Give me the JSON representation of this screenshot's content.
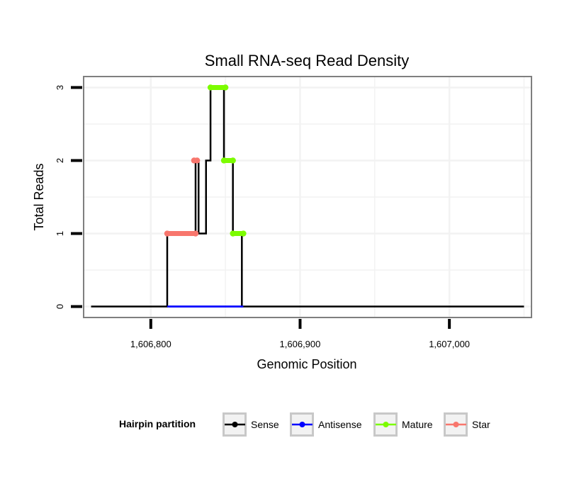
{
  "chart_data": {
    "type": "line",
    "title": "Small RNA-seq Read Density",
    "xlabel": "Genomic Position",
    "ylabel": "Total Reads",
    "xlim": [
      1606755,
      1607055
    ],
    "ylim": [
      -0.15,
      3.15
    ],
    "x_ticks": [
      1606800,
      1606900,
      1607000
    ],
    "x_tick_labels": [
      "1,606,800",
      "1,606,900",
      "1,607,000"
    ],
    "y_ticks": [
      0,
      1,
      2,
      3
    ],
    "y_tick_labels": [
      "0",
      "1",
      "2",
      "3"
    ],
    "grid": true,
    "legend": {
      "title": "Hairpin partition",
      "position": "bottom",
      "entries": [
        {
          "name": "Sense",
          "color": "#000000"
        },
        {
          "name": "Antisense",
          "color": "#0000ff"
        },
        {
          "name": "Mature",
          "color": "#7cfc00"
        },
        {
          "name": "Star",
          "color": "#f8766d"
        }
      ]
    },
    "series": [
      {
        "name": "Sense",
        "color": "#000000",
        "x": [
          1606760,
          1606811,
          1606811,
          1606830,
          1606830,
          1606832,
          1606832,
          1606837,
          1606837,
          1606840,
          1606840,
          1606849,
          1606849,
          1606855,
          1606855,
          1606861,
          1606861,
          1607050
        ],
        "y": [
          0,
          0,
          1,
          1,
          2,
          2,
          1,
          1,
          2,
          2,
          3,
          3,
          2,
          2,
          1,
          1,
          0,
          0
        ]
      },
      {
        "name": "Antisense",
        "color": "#0000ff",
        "x": [
          1606811,
          1606862
        ],
        "y": [
          0,
          0
        ]
      }
    ],
    "segments": [
      {
        "name": "Star",
        "color": "#f8766d",
        "x": [
          1606811,
          1606830
        ],
        "y": 1
      },
      {
        "name": "Star",
        "color": "#f8766d",
        "x": [
          1606829,
          1606831
        ],
        "y": 2
      },
      {
        "name": "Mature",
        "color": "#7cfc00",
        "x": [
          1606840,
          1606850
        ],
        "y": 3
      },
      {
        "name": "Mature",
        "color": "#7cfc00",
        "x": [
          1606849,
          1606855
        ],
        "y": 2
      },
      {
        "name": "Mature",
        "color": "#7cfc00",
        "x": [
          1606855,
          1606862
        ],
        "y": 1
      }
    ]
  }
}
